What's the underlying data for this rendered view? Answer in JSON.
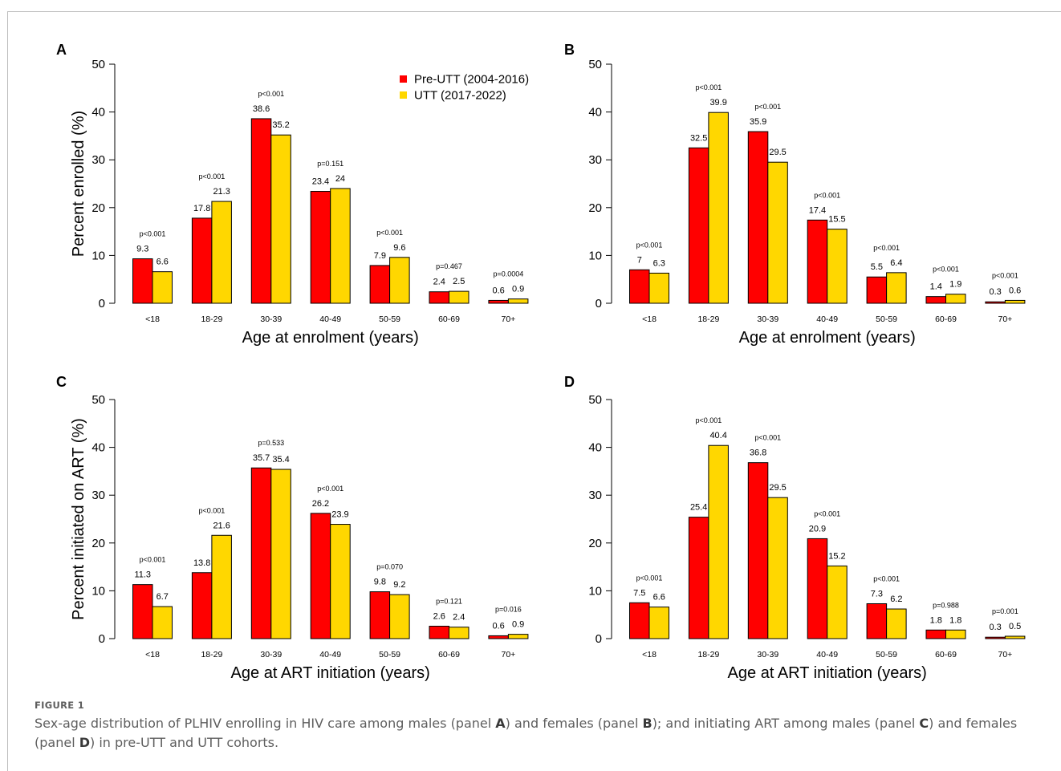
{
  "figure": {
    "label": "FIGURE 1",
    "caption_parts": [
      {
        "text": "Sex-age distribution of PLHIV enrolling in HIV care among males (panel ",
        "bold": false
      },
      {
        "text": "A",
        "bold": true
      },
      {
        "text": ") and females (panel ",
        "bold": false
      },
      {
        "text": "B",
        "bold": true
      },
      {
        "text": "); and initiating ART among males (panel ",
        "bold": false
      },
      {
        "text": "C",
        "bold": true
      },
      {
        "text": ") and females (panel ",
        "bold": false
      },
      {
        "text": "D",
        "bold": true
      },
      {
        "text": ") in pre-UTT and UTT cohorts.",
        "bold": false
      }
    ]
  },
  "colors": {
    "pre_utt": "#ff0000",
    "utt": "#ffd700",
    "stroke": "#000000"
  },
  "legend": {
    "placement": "top-right",
    "entries": [
      "Pre-UTT (2004-2016)",
      "UTT (2017-2022)"
    ]
  },
  "chart_data": [
    {
      "panel": "A",
      "type": "bar",
      "xlabel": "Age at enrolment (years)",
      "ylabel": "Percent enrolled (%)",
      "ylim": [
        0,
        50
      ],
      "yticks": [
        0,
        10,
        20,
        30,
        40,
        50
      ],
      "grid": false,
      "categories": [
        "<18",
        "18-29",
        "30-39",
        "40-49",
        "50-59",
        "60-69",
        "70+"
      ],
      "series": [
        {
          "name": "Pre-UTT (2004-2016)",
          "values": [
            9.3,
            17.8,
            38.6,
            23.4,
            7.9,
            2.4,
            0.6
          ]
        },
        {
          "name": "UTT (2017-2022)",
          "values": [
            6.6,
            21.3,
            35.2,
            24,
            9.6,
            2.5,
            0.9
          ]
        }
      ],
      "pvalues": [
        "p<0.001",
        "p<0.001",
        "p<0.001",
        "p=0.151",
        "p<0.001",
        "p=0.467",
        "p=0.0004"
      ]
    },
    {
      "panel": "B",
      "type": "bar",
      "xlabel": "Age at enrolment (years)",
      "ylabel": "",
      "ylim": [
        0,
        50
      ],
      "yticks": [
        0,
        10,
        20,
        30,
        40,
        50
      ],
      "grid": false,
      "categories": [
        "<18",
        "18-29",
        "30-39",
        "40-49",
        "50-59",
        "60-69",
        "70+"
      ],
      "series": [
        {
          "name": "Pre-UTT (2004-2016)",
          "values": [
            7,
            32.5,
            35.9,
            17.4,
            5.5,
            1.4,
            0.3
          ]
        },
        {
          "name": "UTT (2017-2022)",
          "values": [
            6.3,
            39.9,
            29.5,
            15.5,
            6.4,
            1.9,
            0.6
          ]
        }
      ],
      "pvalues": [
        "p<0.001",
        "p<0.001",
        "p<0.001",
        "p<0.001",
        "p<0.001",
        "p<0.001",
        "p<0.001"
      ]
    },
    {
      "panel": "C",
      "type": "bar",
      "xlabel": "Age at ART initiation (years)",
      "ylabel": "Percent initiated on ART (%)",
      "ylim": [
        0,
        50
      ],
      "yticks": [
        0,
        10,
        20,
        30,
        40,
        50
      ],
      "grid": false,
      "categories": [
        "<18",
        "18-29",
        "30-39",
        "40-49",
        "50-59",
        "60-69",
        "70+"
      ],
      "series": [
        {
          "name": "Pre-UTT (2004-2016)",
          "values": [
            11.3,
            13.8,
            35.7,
            26.2,
            9.8,
            2.6,
            0.6
          ]
        },
        {
          "name": "UTT (2017-2022)",
          "values": [
            6.7,
            21.6,
            35.4,
            23.9,
            9.2,
            2.4,
            0.9
          ]
        }
      ],
      "pvalues": [
        "p<0.001",
        "p<0.001",
        "p=0.533",
        "p<0.001",
        "p=0.070",
        "p=0.121",
        "p=0.016"
      ]
    },
    {
      "panel": "D",
      "type": "bar",
      "xlabel": "Age at ART initiation (years)",
      "ylabel": "",
      "ylim": [
        0,
        50
      ],
      "yticks": [
        0,
        10,
        20,
        30,
        40,
        50
      ],
      "grid": false,
      "categories": [
        "<18",
        "18-29",
        "30-39",
        "40-49",
        "50-59",
        "60-69",
        "70+"
      ],
      "series": [
        {
          "name": "Pre-UTT (2004-2016)",
          "values": [
            7.5,
            25.4,
            36.8,
            20.9,
            7.3,
            1.8,
            0.3
          ]
        },
        {
          "name": "UTT (2017-2022)",
          "values": [
            6.6,
            40.4,
            29.5,
            15.2,
            6.2,
            1.8,
            0.5
          ]
        }
      ],
      "pvalues": [
        "p<0.001",
        "p<0.001",
        "p<0.001",
        "p<0.001",
        "p<0.001",
        "p=0.988",
        "p=0.001"
      ]
    }
  ]
}
